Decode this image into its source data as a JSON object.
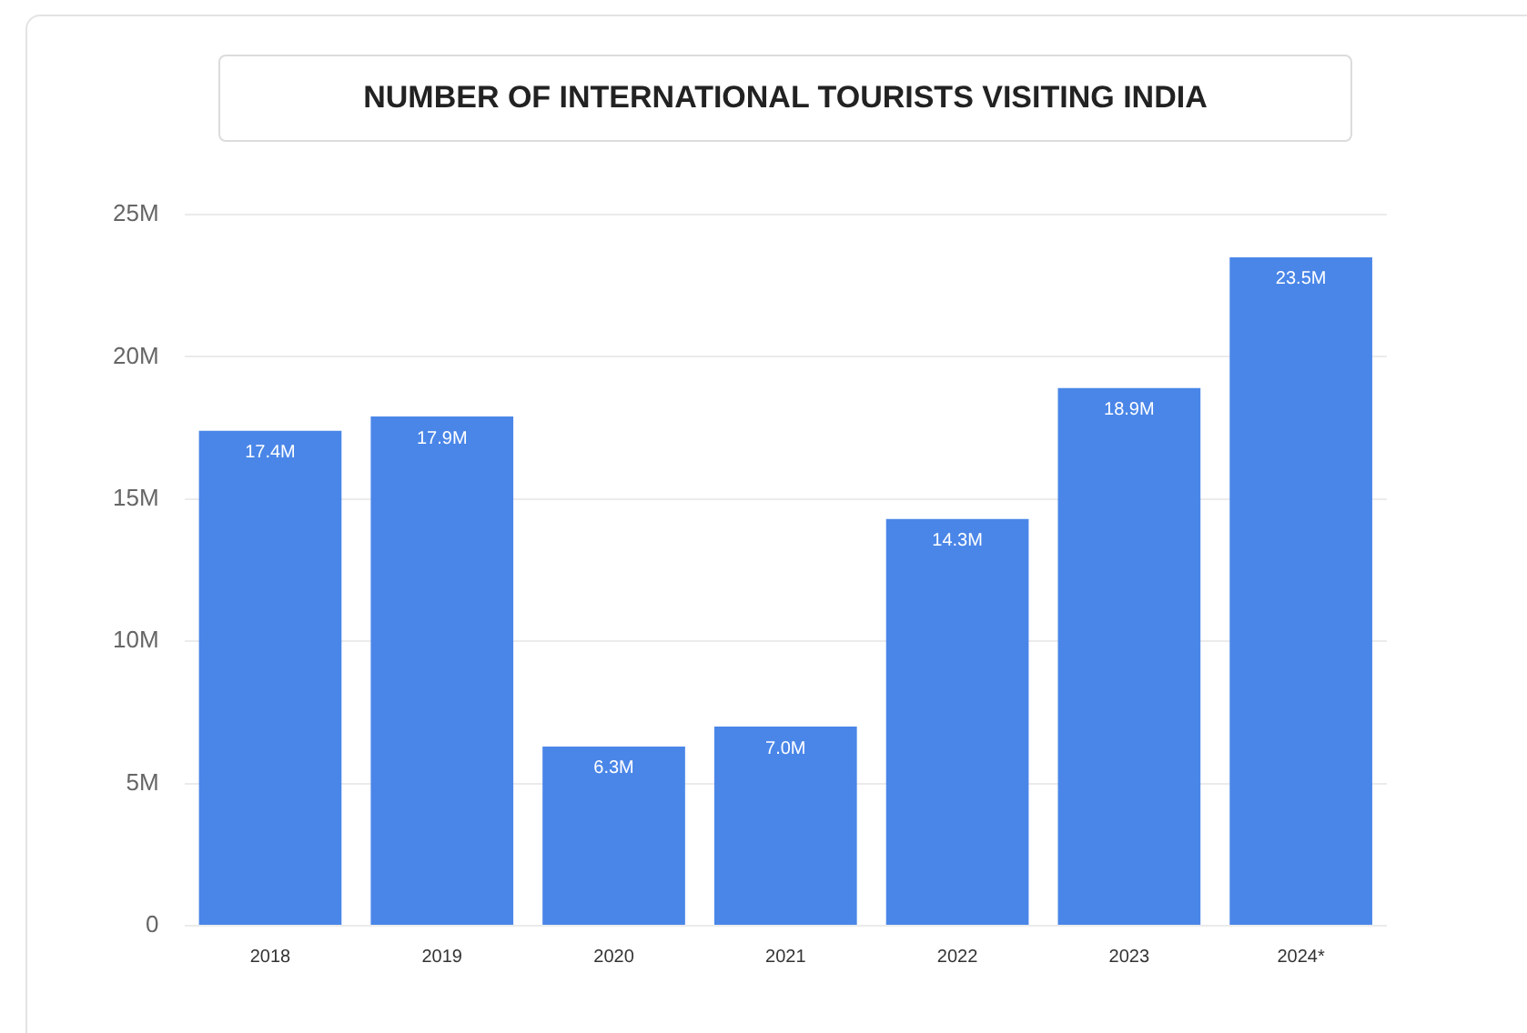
{
  "chart_data": {
    "type": "bar",
    "title": "NUMBER OF INTERNATIONAL TOURISTS VISITING INDIA",
    "categories": [
      "2018",
      "2019",
      "2020",
      "2021",
      "2022",
      "2023",
      "2024*"
    ],
    "values": [
      17.4,
      17.9,
      6.3,
      7.0,
      14.3,
      18.9,
      23.5
    ],
    "value_labels": [
      "17.4M",
      "17.9M",
      "6.3M",
      "7.0M",
      "14.3M",
      "18.9M",
      "23.5M"
    ],
    "color": "#4a86e8",
    "ylim": [
      0,
      25
    ],
    "yticks": [
      0,
      {
        "value": 5,
        "label": "5M"
      },
      {
        "value": 10,
        "label": "10M"
      },
      {
        "value": 15,
        "label": "15M"
      },
      {
        "value": 20,
        "label": "20M"
      },
      {
        "value": 25,
        "label": "25M"
      }
    ],
    "grid": "y",
    "legend": false
  }
}
